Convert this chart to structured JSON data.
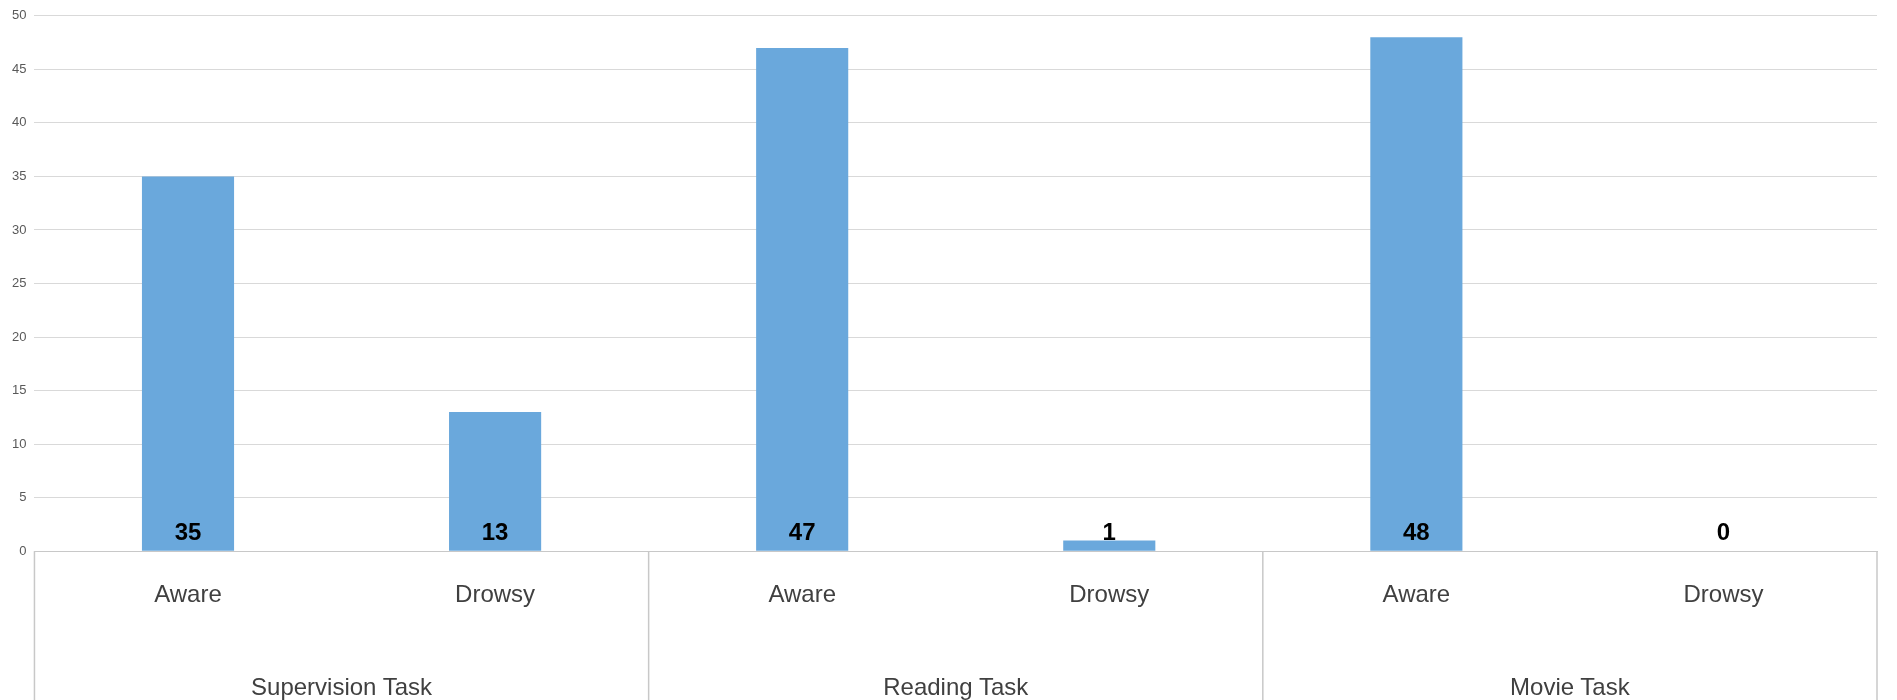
{
  "chart_data": {
    "type": "bar",
    "categories": [
      "Aware",
      "Drowsy",
      "Aware",
      "Drowsy",
      "Aware",
      "Drowsy"
    ],
    "values": [
      35,
      13,
      47,
      1,
      48,
      0
    ],
    "color": "#6aa8dc",
    "ylim": [
      0,
      50
    ],
    "yticks": [
      0,
      5,
      10,
      15,
      20,
      25,
      30,
      35,
      40,
      45,
      50
    ],
    "grid": "y",
    "legend": false,
    "data_labels": true,
    "annotations": [
      "Supervision Task",
      "Reading Task",
      "Movie Task"
    ]
  }
}
